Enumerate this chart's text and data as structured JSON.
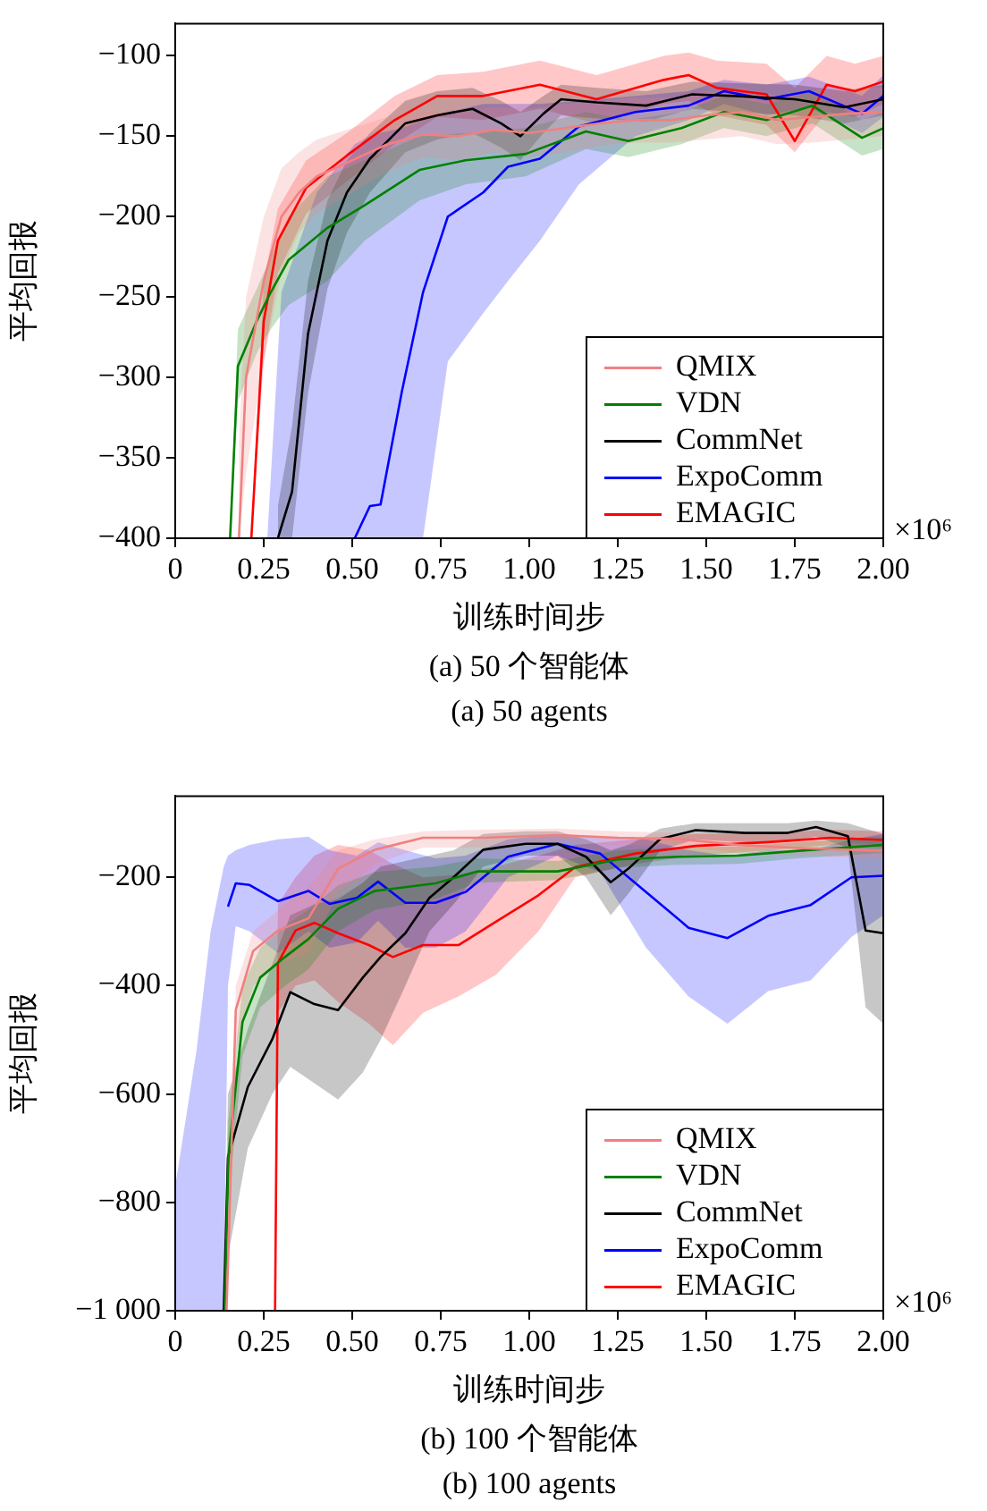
{
  "chart_data": [
    {
      "type": "line",
      "xlabel": "训练时间步",
      "ylabel": "平均回报",
      "annotations": [
        "×10⁶",
        "(a) 50 个智能体",
        "(a) 50 agents"
      ],
      "xlim": [
        0,
        2
      ],
      "xticks": [
        0,
        0.25,
        {
          "value": 0.5,
          "label": "0.50"
        },
        0.75,
        {
          "value": 1,
          "label": "1.00"
        },
        1.25,
        {
          "value": 1.5,
          "label": "1.50"
        },
        1.75,
        {
          "value": 2,
          "label": "2.00"
        }
      ],
      "ylim": [
        -400,
        -80
      ],
      "yticks": [
        {
          "value": -400,
          "label": "−400"
        },
        {
          "value": -350,
          "label": "−350"
        },
        {
          "value": -300,
          "label": "−300"
        },
        {
          "value": -250,
          "label": "−250"
        },
        {
          "value": -200,
          "label": "−200"
        },
        {
          "value": -150,
          "label": "−150"
        },
        {
          "value": -100,
          "label": "−100"
        }
      ],
      "grid": false,
      "legend": "bottom right",
      "series": [
        {
          "name": "QMIX",
          "color": "#f08080",
          "x": [
            0.18,
            0.2,
            0.25,
            0.3,
            0.35,
            0.4,
            0.5,
            0.6,
            0.7,
            0.8,
            0.9,
            1.0,
            1.1,
            1.2,
            1.3,
            1.4,
            1.5,
            1.6,
            1.7,
            1.8,
            1.9,
            2.0
          ],
          "values": [
            -400,
            -300,
            -240,
            -200,
            -185,
            -175,
            -165,
            -155,
            -149,
            -150,
            -146,
            -148,
            -145,
            -142,
            -140,
            -140,
            -137,
            -135,
            -140,
            -138,
            -136,
            -135
          ],
          "upper": [
            -340,
            -250,
            -200,
            -170,
            -160,
            -152,
            -145,
            -138,
            -135,
            -135,
            -132,
            -133,
            -130,
            -128,
            -126,
            -126,
            -122,
            -120,
            -125,
            -122,
            -120,
            -120
          ],
          "lower": [
            -400,
            -360,
            -290,
            -235,
            -210,
            -198,
            -185,
            -172,
            -163,
            -165,
            -160,
            -163,
            -160,
            -156,
            -154,
            -154,
            -152,
            -150,
            -155,
            -154,
            -152,
            -150
          ]
        },
        {
          "name": "VDN",
          "color": "#008000",
          "x": [
            0.155,
            0.177,
            0.23,
            0.27,
            0.32,
            0.43,
            0.535,
            0.69,
            0.82,
            0.99,
            1.16,
            1.28,
            1.43,
            1.55,
            1.67,
            1.8,
            1.94,
            2.0
          ],
          "values": [
            -400,
            -293,
            -265,
            -247,
            -227,
            -207,
            -193,
            -171,
            -165,
            -161,
            -147,
            -153,
            -145,
            -135,
            -140,
            -131,
            -151,
            -145
          ],
          "upper": [
            -400,
            -270,
            -245,
            -225,
            -200,
            -175,
            -165,
            -150,
            -148,
            -145,
            -135,
            -140,
            -135,
            -125,
            -130,
            -122,
            -140,
            -135
          ],
          "lower": [
            -400,
            -315,
            -285,
            -270,
            -255,
            -240,
            -215,
            -190,
            -180,
            -175,
            -158,
            -163,
            -155,
            -145,
            -150,
            -142,
            -162,
            -158
          ]
        },
        {
          "name": "CommNet",
          "color": "#000000",
          "x": [
            0.29,
            0.33,
            0.375,
            0.43,
            0.485,
            0.55,
            0.65,
            0.74,
            0.84,
            0.92,
            0.975,
            1.04,
            1.09,
            1.19,
            1.33,
            1.46,
            1.58,
            1.75,
            1.89,
            2.0
          ],
          "values": [
            -400,
            -371,
            -273,
            -215,
            -185,
            -164,
            -142,
            -137,
            -133,
            -142,
            -150,
            -136,
            -127,
            -129,
            -131,
            -124,
            -125,
            -127,
            -132,
            -127
          ],
          "upper": [
            -380,
            -330,
            -240,
            -190,
            -165,
            -148,
            -128,
            -122,
            -120,
            -128,
            -135,
            -125,
            -118,
            -120,
            -122,
            -116,
            -117,
            -118,
            -122,
            -118
          ],
          "lower": [
            -400,
            -400,
            -310,
            -245,
            -210,
            -185,
            -160,
            -152,
            -148,
            -157,
            -165,
            -148,
            -137,
            -139,
            -141,
            -133,
            -135,
            -137,
            -142,
            -137
          ]
        },
        {
          "name": "ExpoComm",
          "color": "#0000ff",
          "x": [
            0.26,
            0.3,
            0.4,
            0.507,
            0.55,
            0.58,
            0.64,
            0.7,
            0.77,
            0.87,
            0.94,
            1.03,
            1.14,
            1.3,
            1.45,
            1.55,
            1.67,
            1.79,
            1.94,
            2.0
          ],
          "values": [
            null,
            null,
            null,
            -400,
            -380,
            -379,
            -309,
            -247,
            -200,
            -185,
            -169,
            -164,
            -144,
            -135,
            -131,
            -122,
            -127,
            -122,
            -136,
            -125
          ],
          "upper": [
            -400,
            -247,
            -185,
            -155,
            -150,
            -148,
            -145,
            -140,
            -135,
            -130,
            -130,
            -130,
            -128,
            -125,
            -122,
            -115,
            -118,
            -113,
            -125,
            -112
          ],
          "lower": [
            -400,
            -400,
            -400,
            -400,
            -400,
            -400,
            -400,
            -400,
            -290,
            -260,
            -240,
            -215,
            -180,
            -150,
            -140,
            -130,
            -137,
            -132,
            -148,
            -138
          ]
        },
        {
          "name": "EMAGIC",
          "color": "#ff0000",
          "x": [
            0.215,
            0.25,
            0.29,
            0.37,
            0.485,
            0.62,
            0.74,
            0.87,
            1.03,
            1.19,
            1.38,
            1.45,
            1.53,
            1.67,
            1.75,
            1.84,
            1.92,
            2.0
          ],
          "values": [
            -400,
            -265,
            -215,
            -182,
            -162,
            -140,
            -125,
            -125,
            -118,
            -127,
            -115,
            -112,
            -120,
            -124,
            -153,
            -118,
            -122,
            -116
          ],
          "upper": [
            -400,
            -240,
            -195,
            -165,
            -148,
            -125,
            -112,
            -110,
            -103,
            -112,
            -100,
            -98,
            -103,
            -105,
            -120,
            -100,
            -105,
            -100
          ],
          "lower": [
            -400,
            -290,
            -235,
            -198,
            -178,
            -155,
            -138,
            -140,
            -133,
            -142,
            -130,
            -128,
            -137,
            -143,
            -160,
            -135,
            -138,
            -130
          ]
        }
      ]
    },
    {
      "type": "line",
      "xlabel": "训练时间步",
      "ylabel": "平均回报",
      "annotations": [
        "×10⁶",
        "(b) 100 个智能体",
        "(b) 100 agents"
      ],
      "xlim": [
        0,
        2
      ],
      "xticks": [
        0,
        0.25,
        {
          "value": 0.5,
          "label": "0.50"
        },
        0.75,
        {
          "value": 1,
          "label": "1.00"
        },
        1.25,
        {
          "value": 1.5,
          "label": "1.50"
        },
        1.75,
        {
          "value": 2,
          "label": "2.00"
        }
      ],
      "ylim": [
        -1000,
        -50
      ],
      "yticks": [
        {
          "value": -1000,
          "label": "−1 000"
        },
        {
          "value": -800,
          "label": "−800"
        },
        {
          "value": -600,
          "label": "−600"
        },
        {
          "value": -400,
          "label": "−400"
        },
        {
          "value": -200,
          "label": "−200"
        }
      ],
      "grid": false,
      "legend": "bottom right",
      "series": [
        {
          "name": "QMIX",
          "color": "#f08080",
          "x": [
            0.145,
            0.171,
            0.22,
            0.29,
            0.376,
            0.46,
            0.564,
            0.7,
            0.87,
            1.08,
            1.25,
            1.42,
            1.59,
            1.76,
            2.0
          ],
          "values": [
            -1000,
            -445,
            -336,
            -298,
            -276,
            -184,
            -149,
            -127,
            -127,
            -122,
            -127,
            -129,
            -140,
            -146,
            -151
          ],
          "upper": [
            -1000,
            -400,
            -300,
            -260,
            -220,
            -150,
            -130,
            -115,
            -112,
            -110,
            -115,
            -118,
            -125,
            -130,
            -140
          ],
          "lower": [
            -1000,
            -520,
            -400,
            -360,
            -340,
            -230,
            -175,
            -145,
            -145,
            -135,
            -140,
            -142,
            -155,
            -160,
            -165
          ]
        },
        {
          "name": "VDN",
          "color": "#008000",
          "x": [
            0.14,
            0.15,
            0.19,
            0.24,
            0.31,
            0.376,
            0.46,
            0.564,
            0.735,
            0.855,
            1.08,
            1.25,
            1.42,
            1.59,
            1.76,
            2.0
          ],
          "values": [
            -1000,
            -717,
            -467,
            -385,
            -347,
            -314,
            -258,
            -225,
            -211,
            -189,
            -189,
            -167,
            -162,
            -160,
            -151,
            -140
          ],
          "upper": [
            -1000,
            -650,
            -400,
            -330,
            -290,
            -260,
            -215,
            -190,
            -180,
            -165,
            -170,
            -150,
            -145,
            -143,
            -135,
            -125
          ],
          "lower": [
            -1000,
            -800,
            -530,
            -440,
            -400,
            -370,
            -300,
            -260,
            -240,
            -210,
            -205,
            -182,
            -177,
            -175,
            -165,
            -155
          ]
        },
        {
          "name": "CommNet",
          "color": "#000000",
          "x": [
            0.137,
            0.149,
            0.205,
            0.274,
            0.325,
            0.393,
            0.46,
            0.53,
            0.58,
            0.65,
            0.718,
            0.786,
            0.87,
            0.99,
            1.08,
            1.16,
            1.23,
            1.28,
            1.37,
            1.47,
            1.61,
            1.73,
            1.81,
            1.9,
            1.95,
            2.0
          ],
          "values": [
            -1000,
            -717,
            -587,
            -499,
            -412,
            -434,
            -445,
            -385,
            -347,
            -303,
            -238,
            -200,
            -149,
            -138,
            -138,
            -162,
            -209,
            -184,
            -129,
            -113,
            -118,
            -118,
            -107,
            -124,
            -298,
            -303
          ],
          "upper": [
            -1000,
            -600,
            -480,
            -360,
            -270,
            -250,
            -240,
            -210,
            -180,
            -170,
            -160,
            -150,
            -120,
            -115,
            -115,
            -130,
            -150,
            -140,
            -110,
            -100,
            -100,
            -100,
            -95,
            -100,
            -110,
            -120
          ],
          "lower": [
            -1000,
            -900,
            -700,
            -600,
            -550,
            -580,
            -610,
            -560,
            -500,
            -400,
            -300,
            -250,
            -180,
            -160,
            -160,
            -200,
            -270,
            -230,
            -150,
            -130,
            -135,
            -135,
            -125,
            -145,
            -440,
            -470
          ]
        },
        {
          "name": "ExpoComm",
          "color": "#0000ff",
          "x": [
            0,
            0.06,
            0.1,
            0.137,
            0.149,
            0.171,
            0.21,
            0.29,
            0.376,
            0.436,
            0.513,
            0.573,
            0.65,
            0.735,
            0.82,
            0.94,
            1.08,
            1.2,
            1.33,
            1.45,
            1.56,
            1.675,
            1.795,
            1.91,
            2.0
          ],
          "values": [
            null,
            null,
            null,
            null,
            -254,
            -211,
            -214,
            -244,
            -225,
            -249,
            -238,
            -208,
            -247,
            -247,
            -227,
            -162,
            -138,
            -156,
            -227,
            -293,
            -312,
            -271,
            -251,
            -200,
            -197
          ],
          "upper": [
            -770,
            -520,
            -300,
            -180,
            -160,
            -150,
            -140,
            -130,
            -125,
            -150,
            -160,
            -135,
            -150,
            -165,
            -160,
            -130,
            -120,
            -125,
            -130,
            -150,
            -160,
            -150,
            -150,
            -130,
            -120
          ],
          "lower": [
            -1000,
            -1000,
            -1000,
            -1000,
            -400,
            -290,
            -300,
            -340,
            -300,
            -330,
            -320,
            -280,
            -330,
            -330,
            -300,
            -200,
            -160,
            -190,
            -330,
            -420,
            -470,
            -410,
            -390,
            -310,
            -270
          ]
        },
        {
          "name": "EMAGIC",
          "color": "#ff0000",
          "x": [
            0.282,
            0.29,
            0.34,
            0.393,
            0.46,
            0.547,
            0.615,
            0.7,
            0.8,
            0.906,
            1.026,
            1.13,
            1.3,
            1.47,
            1.675,
            1.85,
            2.0
          ],
          "values": [
            -1000,
            -358,
            -298,
            -284,
            -303,
            -325,
            -347,
            -325,
            -325,
            -282,
            -233,
            -181,
            -156,
            -142,
            -135,
            -127,
            -131
          ],
          "upper": [
            -1000,
            -250,
            -200,
            -160,
            -140,
            -150,
            -175,
            -200,
            -195,
            -180,
            -160,
            -140,
            -130,
            -120,
            -118,
            -112,
            -115
          ],
          "lower": [
            -1000,
            -450,
            -400,
            -390,
            -430,
            -470,
            -510,
            -450,
            -420,
            -380,
            -300,
            -200,
            -175,
            -160,
            -150,
            -140,
            -145
          ]
        }
      ]
    }
  ]
}
